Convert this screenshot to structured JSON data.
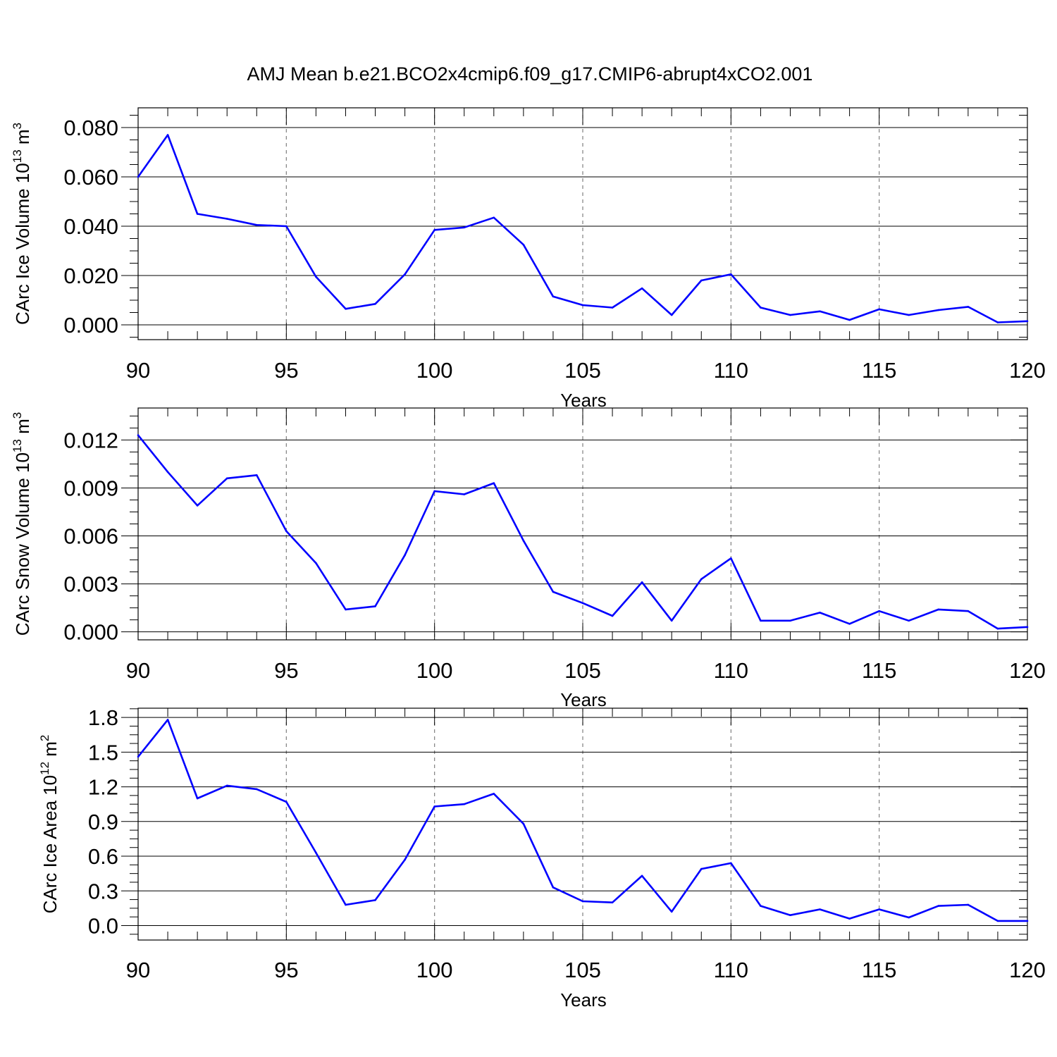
{
  "title": "AMJ Mean b.e21.BCO2x4cmip6.f09_g17.CMIP6-abrupt4xCO2.001",
  "colors": {
    "line": "#0000ff",
    "axis": "#000000",
    "grid": "#808080"
  },
  "chart_data": [
    {
      "type": "line",
      "ylabel": {
        "text": "CArc Ice Volume 10",
        "exp": "13",
        "unit": " m",
        "unit_exp": "3"
      },
      "xlabel": "Years",
      "xlim": [
        90,
        120
      ],
      "ylim": [
        -0.006,
        0.088
      ],
      "xticks": [
        "90",
        "95",
        "100",
        "105",
        "110",
        "115",
        "120"
      ],
      "yticks": [
        "0.000",
        "0.020",
        "0.040",
        "0.060",
        "0.080"
      ],
      "grid": "dashed vertical at major x ticks",
      "x": [
        90,
        91,
        92,
        93,
        94,
        95,
        96,
        97,
        98,
        99,
        100,
        101,
        102,
        103,
        104,
        105,
        106,
        107,
        108,
        109,
        110,
        111,
        112,
        113,
        114,
        115,
        116,
        117,
        118,
        119,
        120
      ],
      "values": [
        0.06,
        0.077,
        0.045,
        0.043,
        0.0405,
        0.04,
        0.0195,
        0.0065,
        0.0085,
        0.0205,
        0.0385,
        0.0395,
        0.0435,
        0.0325,
        0.0115,
        0.008,
        0.007,
        0.0148,
        0.004,
        0.018,
        0.0205,
        0.007,
        0.004,
        0.0055,
        0.002,
        0.0063,
        0.004,
        0.006,
        0.0073,
        0.001,
        0.0015
      ]
    },
    {
      "type": "line",
      "ylabel": {
        "text": "CArc Snow Volume 10",
        "exp": "13",
        "unit": " m",
        "unit_exp": "3"
      },
      "xlabel": "Years",
      "xlim": [
        90,
        120
      ],
      "ylim": [
        -0.0005,
        0.014
      ],
      "xticks": [
        "90",
        "95",
        "100",
        "105",
        "110",
        "115",
        "120"
      ],
      "yticks": [
        "0.000",
        "0.003",
        "0.006",
        "0.009",
        "0.012"
      ],
      "grid": "dashed vertical at major x ticks",
      "x": [
        90,
        91,
        92,
        93,
        94,
        95,
        96,
        97,
        98,
        99,
        100,
        101,
        102,
        103,
        104,
        105,
        106,
        107,
        108,
        109,
        110,
        111,
        112,
        113,
        114,
        115,
        116,
        117,
        118,
        119,
        120
      ],
      "values": [
        0.0123,
        0.01,
        0.0079,
        0.0096,
        0.0098,
        0.0063,
        0.0043,
        0.0014,
        0.0016,
        0.0048,
        0.0088,
        0.0086,
        0.0093,
        0.0057,
        0.0025,
        0.0018,
        0.001,
        0.0031,
        0.0007,
        0.0033,
        0.0046,
        0.0007,
        0.0007,
        0.0012,
        0.0005,
        0.0013,
        0.0007,
        0.0014,
        0.0013,
        0.0002,
        0.0003
      ]
    },
    {
      "type": "line",
      "ylabel": {
        "text": "CArc Ice Area 10",
        "exp": "12",
        "unit": " m",
        "unit_exp": "2"
      },
      "xlabel": "Years",
      "xlim": [
        90,
        120
      ],
      "ylim": [
        -0.125,
        1.88
      ],
      "xticks": [
        "90",
        "95",
        "100",
        "105",
        "110",
        "115",
        "120"
      ],
      "yticks": [
        "0.0",
        "0.3",
        "0.6",
        "0.9",
        "1.2",
        "1.5",
        "1.8"
      ],
      "grid": "dashed vertical at major x ticks",
      "x": [
        90,
        91,
        92,
        93,
        94,
        95,
        96,
        97,
        98,
        99,
        100,
        101,
        102,
        103,
        104,
        105,
        106,
        107,
        108,
        109,
        110,
        111,
        112,
        113,
        114,
        115,
        116,
        117,
        118,
        119,
        120
      ],
      "values": [
        1.46,
        1.78,
        1.1,
        1.21,
        1.18,
        1.07,
        0.63,
        0.18,
        0.22,
        0.57,
        1.03,
        1.05,
        1.14,
        0.88,
        0.33,
        0.21,
        0.2,
        0.43,
        0.12,
        0.49,
        0.54,
        0.17,
        0.09,
        0.14,
        0.06,
        0.14,
        0.07,
        0.17,
        0.18,
        0.04,
        0.04
      ]
    }
  ]
}
